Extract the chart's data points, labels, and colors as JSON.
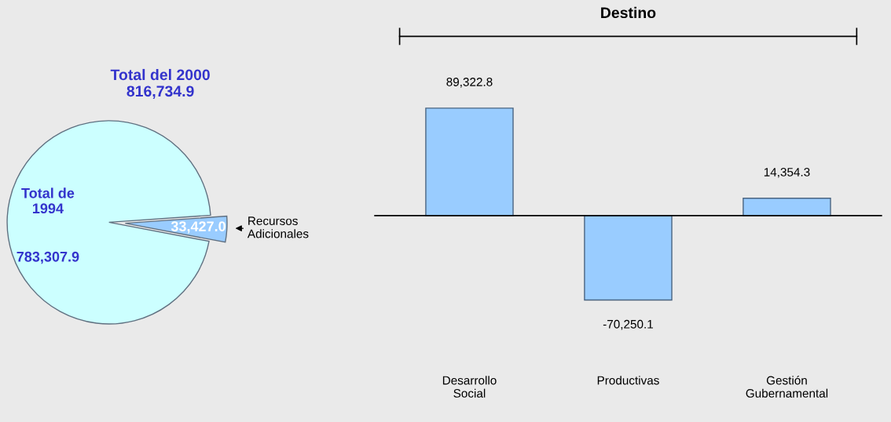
{
  "chart_data": [
    {
      "type": "pie",
      "title": "Total del 2000\n816,734.9",
      "categories": [
        "Total de\n1994",
        "Recursos\nAdicionales"
      ],
      "values": [
        783307.9,
        33427.0
      ],
      "colors": [
        "#ccffff",
        "#99ccff"
      ],
      "data_labels": true,
      "value_labels": [
        "783,307.9",
        "33,427.0"
      ]
    },
    {
      "type": "bar",
      "title": "Destino",
      "categories": [
        "Desarrollo\nSocial",
        "Productivas",
        "Gestión\nGubernamental"
      ],
      "values": [
        89322.8,
        -70250.1,
        14354.3
      ],
      "color": "#99ccff",
      "data_labels": true,
      "value_labels": [
        "89,322.8",
        "-70,250.1",
        "14,354.3"
      ]
    }
  ]
}
